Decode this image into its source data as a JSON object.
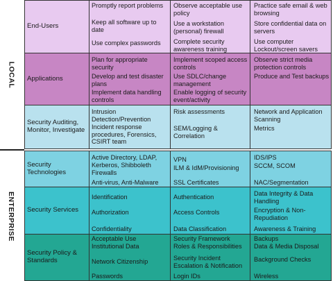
{
  "bands": {
    "local": "LOCAL",
    "enterprise": "ENTERPRISE"
  },
  "rows": [
    {
      "label": "End-Users",
      "col1": [
        "Promptly report problems",
        "Keep all software up to date",
        "Use complex passwords"
      ],
      "col2": [
        "Observe acceptable use policy",
        "Use a workstation (personal) firewall",
        "Complete security awareness training"
      ],
      "col3": [
        "Practice safe email & web browsing",
        "Store confidential data on servers",
        "Use computer Lockout/screen savers"
      ]
    },
    {
      "label": "Applications",
      "col1": [
        "Plan for appropriate security",
        "Develop and test disaster plans",
        "Implement data handling controls"
      ],
      "col2": [
        "Implement scoped access controls",
        "Use SDLC/change management",
        "Enable logging of security event/activity"
      ],
      "col3": [
        "Observe strict media protection controls",
        "Produce and Test backups"
      ]
    },
    {
      "label": "Security Auditing, Monitor, Investigate",
      "col1": [
        "Intrusion Detection/Prevention",
        "Incident response procedures, Forensics, CSIRT team"
      ],
      "col2": [
        "Risk assessments",
        "SEM/Logging & Correlation"
      ],
      "col3": [
        "Network and Application Scanning",
        "Metrics"
      ]
    },
    {
      "label": "Security Technologies",
      "col1": [
        "Active Directory, LDAP, Kerberos, Shibboleth",
        "Firewalls",
        "Anti-virus, Anti-Malware"
      ],
      "col2": [
        "VPN",
        "ILM & IdM/Provisioning",
        "SSL Certificates"
      ],
      "col3": [
        "IDS/IPS",
        "SCCM, SCOM",
        "NAC/Segmentation"
      ]
    },
    {
      "label": "Security Services",
      "col1": [
        "Identification",
        "Authorization",
        "Confidentiality"
      ],
      "col2": [
        "Authentication",
        "Access Controls",
        "Data Classification"
      ],
      "col3": [
        "Data Integrity & Data Handling",
        "Encryption & Non-Repudiation",
        "Awareness & Training"
      ]
    },
    {
      "label": "Security Policy & Standards",
      "col1": [
        "Acceptable Use",
        "Institutional Data",
        "Network Citizenship",
        "Passwords"
      ],
      "col2": [
        "Security Framework",
        "Roles & Responsibilities",
        "Security Incident",
        "Escalation & Notification",
        "Login IDs"
      ],
      "col3": [
        "Backups",
        "Data & Media Disposal",
        "Background Checks",
        "Wireless"
      ]
    }
  ]
}
